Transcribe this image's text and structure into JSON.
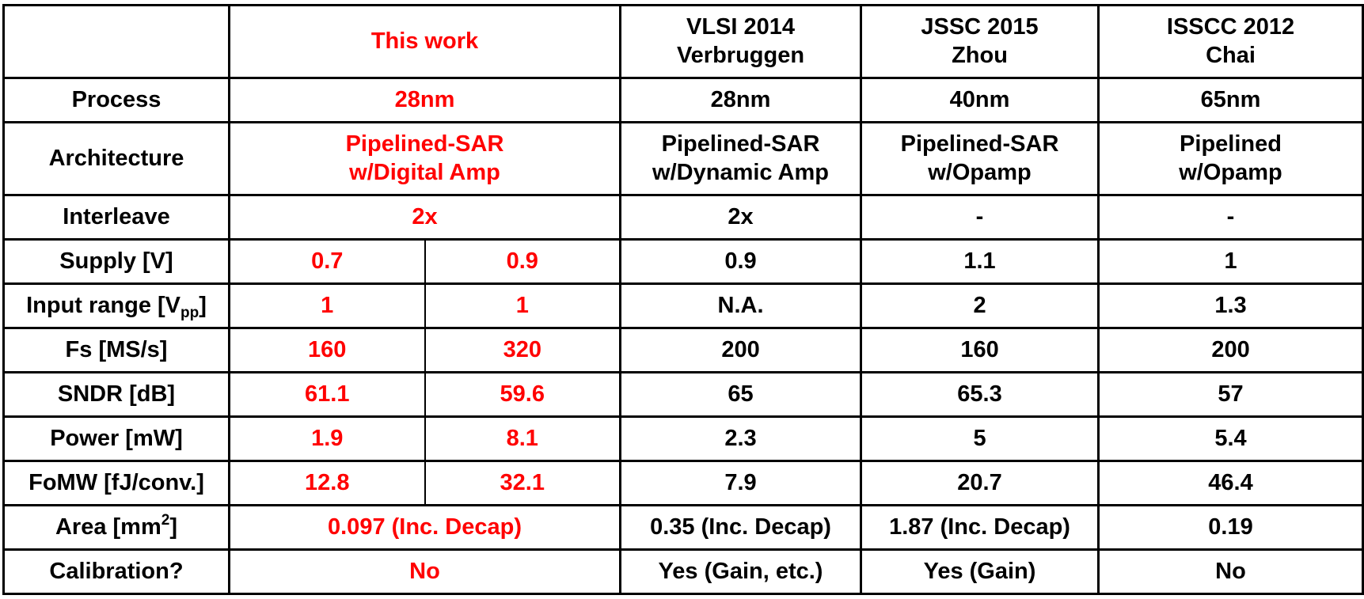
{
  "colors": {
    "highlight": "#ff0000",
    "text": "#000000",
    "grid": "#000000"
  },
  "chart_data": {
    "type": "table",
    "columns": [
      {
        "id": "this_work",
        "line1": "This work",
        "line2": "",
        "highlight": true
      },
      {
        "id": "verbruggen",
        "line1": "VLSI 2014",
        "line2": "Verbruggen",
        "highlight": false
      },
      {
        "id": "zhou",
        "line1": "JSSC 2015",
        "line2": "Zhou",
        "highlight": false
      },
      {
        "id": "chai",
        "line1": "ISSCC 2012",
        "line2": "Chai",
        "highlight": false
      }
    ],
    "rows": [
      {
        "label": "Process",
        "this_work": "28nm",
        "verbruggen": "28nm",
        "zhou": "40nm",
        "chai": "65nm"
      },
      {
        "label": "Architecture",
        "this_work": [
          "Pipelined-SAR",
          "w/Digital Amp"
        ],
        "verbruggen": [
          "Pipelined-SAR",
          "w/Dynamic Amp"
        ],
        "zhou": [
          "Pipelined-SAR",
          "w/Opamp"
        ],
        "chai": [
          "Pipelined",
          "w/Opamp"
        ]
      },
      {
        "label": "Interleave",
        "this_work": "2x",
        "verbruggen": "2x",
        "zhou": "-",
        "chai": "-"
      },
      {
        "label": "Supply [V]",
        "this_work": [
          "0.7",
          "0.9"
        ],
        "verbruggen": "0.9",
        "zhou": "1.1",
        "chai": "1"
      },
      {
        "label": "Input range [V",
        "label_sub": "pp",
        "label_tail": "]",
        "this_work": [
          "1",
          "1"
        ],
        "verbruggen": "N.A.",
        "zhou": "2",
        "chai": "1.3"
      },
      {
        "label": "Fs [MS/s]",
        "this_work": [
          "160",
          "320"
        ],
        "verbruggen": "200",
        "zhou": "160",
        "chai": "200"
      },
      {
        "label": "SNDR [dB]",
        "this_work": [
          "61.1",
          "59.6"
        ],
        "verbruggen": "65",
        "zhou": "65.3",
        "chai": "57"
      },
      {
        "label": "Power [mW]",
        "this_work": [
          "1.9",
          "8.1"
        ],
        "verbruggen": "2.3",
        "zhou": "5",
        "chai": "5.4"
      },
      {
        "label": "FoMW [fJ/conv.]",
        "this_work": [
          "12.8",
          "32.1"
        ],
        "verbruggen": "7.9",
        "zhou": "20.7",
        "chai": "46.4"
      },
      {
        "label": "Area [mm",
        "label_sup": "2",
        "label_tail": "]",
        "this_work": "0.097 (Inc. Decap)",
        "verbruggen": "0.35 (Inc. Decap)",
        "zhou": "1.87 (Inc. Decap)",
        "chai": "0.19"
      },
      {
        "label": "Calibration?",
        "this_work": "No",
        "verbruggen": "Yes (Gain, etc.)",
        "zhou": "Yes (Gain)",
        "chai": "No"
      }
    ]
  }
}
